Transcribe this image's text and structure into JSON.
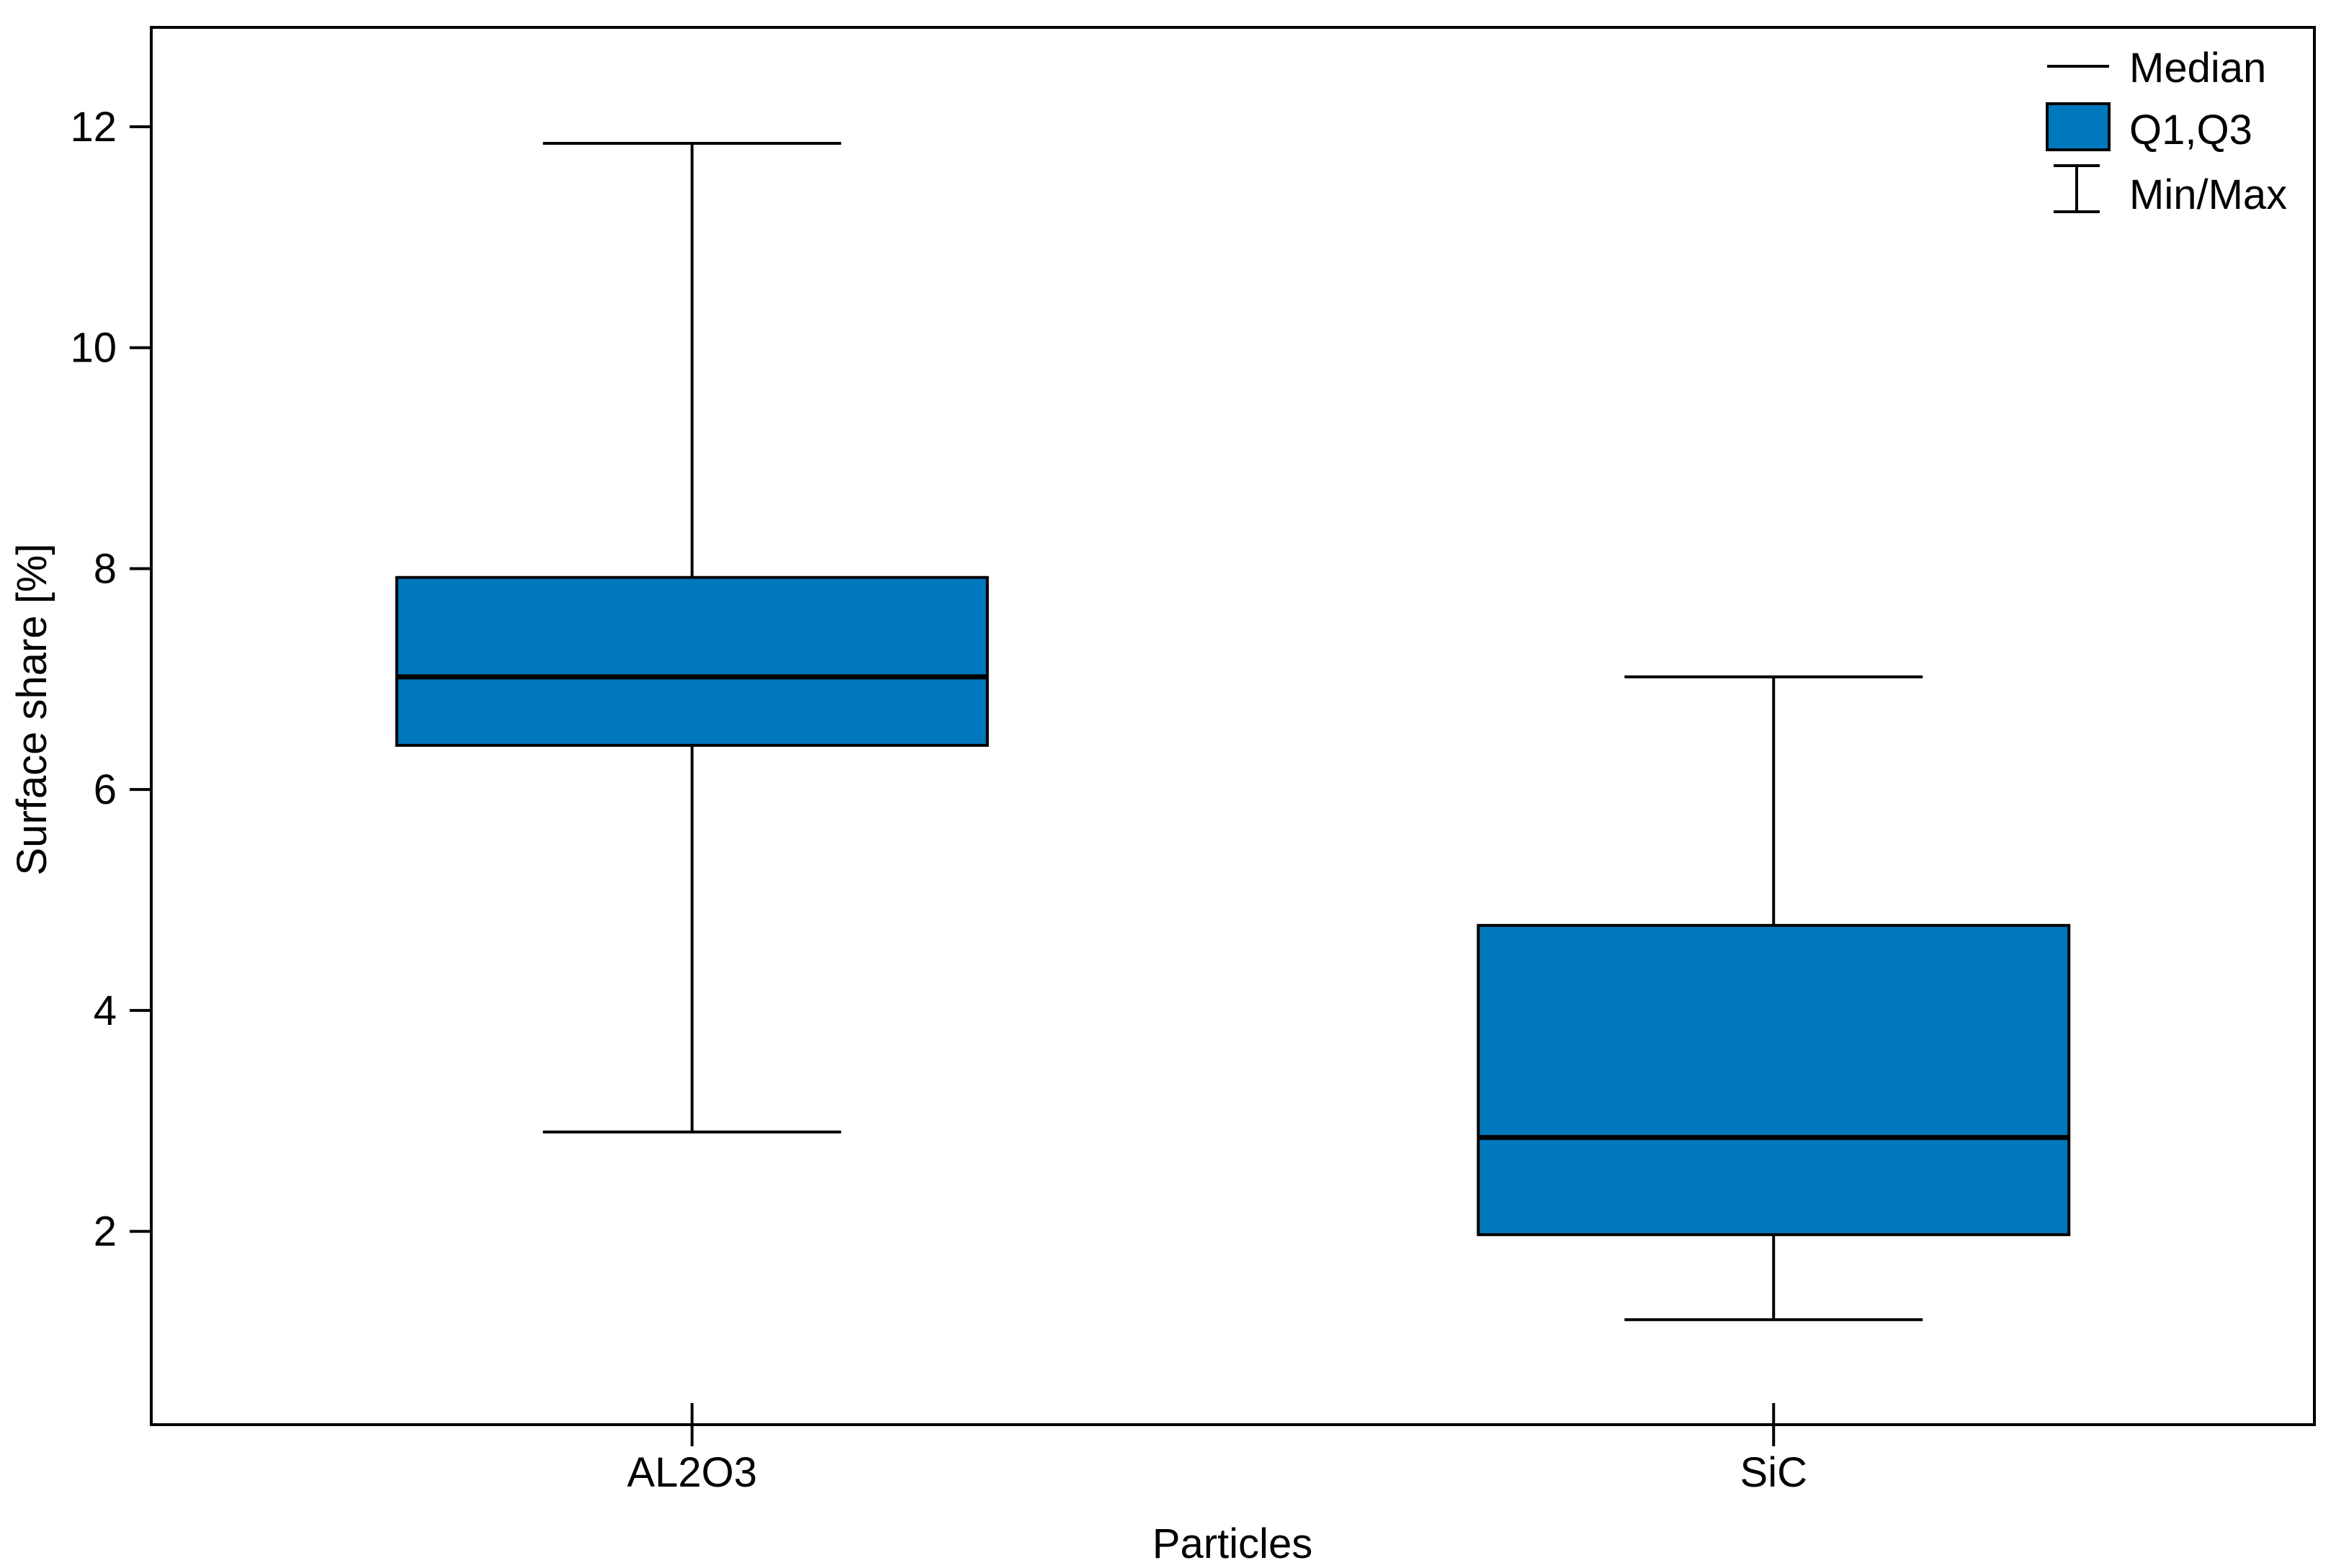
{
  "chart_data": {
    "type": "box",
    "title": "",
    "xlabel": "Particles",
    "ylabel": "Surface share [%]",
    "categories": [
      "AL2O3",
      "SiC"
    ],
    "boxes": [
      {
        "category": "AL2O3",
        "min": 2.9,
        "q1": 6.4,
        "median": 7.02,
        "q3": 7.92,
        "max": 11.85
      },
      {
        "category": "SiC",
        "min": 1.2,
        "q1": 1.97,
        "median": 2.85,
        "q3": 4.77,
        "max": 7.02
      }
    ],
    "ylim": [
      0.25,
      12.9
    ],
    "yticks": [
      2,
      4,
      6,
      8,
      10,
      12
    ],
    "grid": false,
    "legend": {
      "placement": "top-right",
      "items": [
        {
          "key": "median",
          "label": "Median"
        },
        {
          "key": "box",
          "label": "Q1,Q3"
        },
        {
          "key": "whisker",
          "label": "Min/Max"
        }
      ]
    },
    "colors": {
      "box_fill": "#0078BE",
      "line": "#000000"
    }
  }
}
